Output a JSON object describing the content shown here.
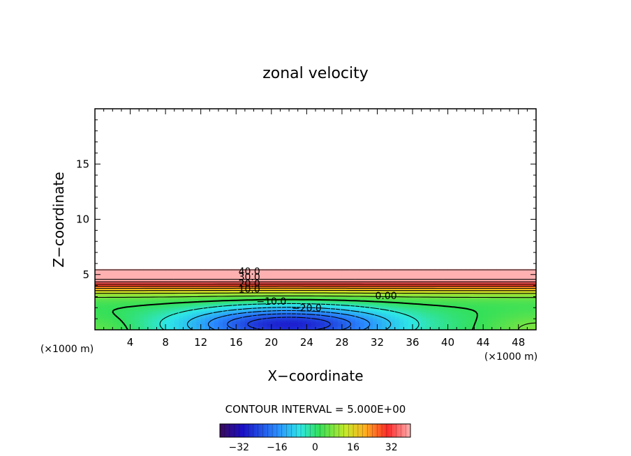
{
  "chart_data": {
    "type": "heatmap",
    "title": "zonal velocity",
    "xlabel": "X−coordinate",
    "ylabel": "Z−coordinate",
    "x_unit_left": "(×1000 m)",
    "x_unit_right": "(×1000 m)",
    "xlim": [
      0,
      50
    ],
    "ylim": [
      0,
      20
    ],
    "x_ticks": [
      4,
      8,
      12,
      16,
      20,
      24,
      28,
      32,
      36,
      40,
      44,
      48
    ],
    "x_tick_labels": [
      "4",
      "8",
      "12",
      "16",
      "20",
      "24",
      "28",
      "32",
      "36",
      "40",
      "44",
      "48"
    ],
    "y_ticks": [
      5,
      10,
      15
    ],
    "y_tick_labels": [
      "5",
      "10",
      "15"
    ],
    "contour_interval_text": "CONTOUR INTERVAL = 5.000E+00",
    "contour_interval": 5.0,
    "field_top_z": 5.5,
    "jet_max": 44,
    "jet_core_z": 5.0,
    "min_value": -30,
    "min_center_x": 22,
    "min_center_z": 0.5,
    "contour_labels": [
      {
        "text": "40.0",
        "x": 17.5,
        "z": 5.3
      },
      {
        "text": "30.0",
        "x": 17.5,
        "z": 4.8
      },
      {
        "text": "20.0",
        "x": 17.5,
        "z": 4.2
      },
      {
        "text": "10.0",
        "x": 17.5,
        "z": 3.7
      },
      {
        "text": "0.00",
        "x": 33.0,
        "z": 3.1
      },
      {
        "text": "−10.0",
        "x": 20.0,
        "z": 2.6
      },
      {
        "text": "−20.0",
        "x": 24.0,
        "z": 2.0
      }
    ],
    "colorbar": {
      "min": -40,
      "max": 40,
      "tick_values": [
        -32,
        -16,
        0,
        16,
        32
      ],
      "tick_labels": [
        "−32",
        "−16",
        "0",
        "16",
        "32"
      ]
    },
    "colors": {
      "negative_strong": "#1a00c8",
      "neutral": "#33e05a",
      "positive_strong": "#ff2222",
      "line": "#000000"
    }
  }
}
